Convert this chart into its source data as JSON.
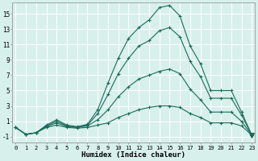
{
  "xlabel": "Humidex (Indice chaleur)",
  "bg_color": "#d8f0ec",
  "grid_color": "#ffffff",
  "line_color": "#1a6b5a",
  "x": [
    0,
    1,
    2,
    3,
    4,
    5,
    6,
    7,
    8,
    9,
    10,
    11,
    12,
    13,
    14,
    15,
    16,
    17,
    18,
    19,
    20,
    21,
    22,
    23
  ],
  "line1": [
    0.2,
    -0.7,
    -0.5,
    0.5,
    1.2,
    0.5,
    0.3,
    0.6,
    2.5,
    6.0,
    9.2,
    11.8,
    13.2,
    14.2,
    15.8,
    16.1,
    14.7,
    10.8,
    8.5,
    5.0,
    5.0,
    5.0,
    2.2,
    -0.8
  ],
  "line2": [
    0.2,
    -0.7,
    -0.5,
    0.4,
    1.0,
    0.4,
    0.2,
    0.5,
    2.0,
    4.5,
    7.2,
    9.2,
    10.8,
    11.5,
    12.8,
    13.2,
    12.0,
    8.8,
    6.8,
    4.0,
    4.0,
    4.0,
    1.8,
    -0.8
  ],
  "line3": [
    0.2,
    -0.7,
    -0.5,
    0.3,
    0.8,
    0.3,
    0.2,
    0.4,
    1.2,
    2.5,
    4.2,
    5.5,
    6.5,
    7.0,
    7.5,
    7.8,
    7.2,
    5.2,
    3.8,
    2.2,
    2.2,
    2.2,
    1.0,
    -0.8
  ],
  "line4": [
    0.2,
    -0.7,
    -0.5,
    0.2,
    0.5,
    0.2,
    0.1,
    0.2,
    0.5,
    0.8,
    1.5,
    2.0,
    2.5,
    2.8,
    3.0,
    3.0,
    2.8,
    2.0,
    1.5,
    0.8,
    0.8,
    0.8,
    0.4,
    -0.8
  ],
  "yticks": [
    -1,
    1,
    3,
    5,
    7,
    9,
    11,
    13,
    15
  ],
  "xticks": [
    0,
    1,
    2,
    3,
    4,
    5,
    6,
    7,
    8,
    9,
    10,
    11,
    12,
    13,
    14,
    15,
    16,
    17,
    18,
    19,
    20,
    21,
    22,
    23
  ],
  "ylim": [
    -1.8,
    16.5
  ],
  "xlim": [
    -0.3,
    23.3
  ]
}
